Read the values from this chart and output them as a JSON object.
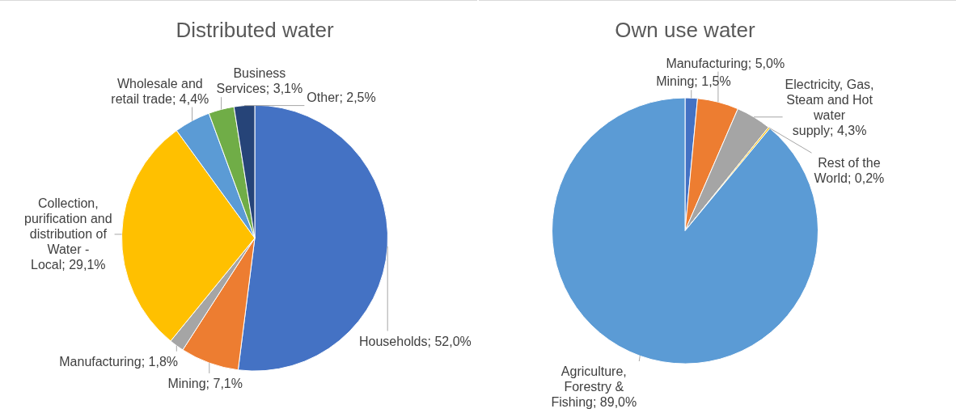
{
  "chart_data": [
    {
      "type": "pie",
      "title": "Distributed water",
      "categories": [
        "Households",
        "Mining",
        "Manufacturing",
        "Collection, purification and distribution of Water - Local",
        "Wholesale and retail trade",
        "Business Services",
        "Other"
      ],
      "values": [
        52.0,
        7.1,
        1.8,
        29.1,
        4.4,
        3.1,
        2.5
      ],
      "colors": [
        "#4472c4",
        "#ed7d31",
        "#a5a5a5",
        "#ffc000",
        "#5b9bd5",
        "#70ad47",
        "#264478"
      ],
      "value_labels": [
        "52,0%",
        "7,1%",
        "1,8%",
        "29,1%",
        "4,4%",
        "3,1%",
        "2,5%"
      ],
      "legend": false
    },
    {
      "type": "pie",
      "title": "Own use water",
      "categories": [
        "Mining",
        "Manufacturing",
        "Electricity, Gas, Steam and Hot water supply",
        "Rest of the World",
        "Agriculture, Forestry & Fishing"
      ],
      "values": [
        1.5,
        5.0,
        4.3,
        0.2,
        89.0
      ],
      "colors": [
        "#4472c4",
        "#ed7d31",
        "#a5a5a5",
        "#ffc000",
        "#5b9bd5"
      ],
      "value_labels": [
        "1,5%",
        "5,0%",
        "4,3%",
        "0,2%",
        "89,0%"
      ],
      "legend": false
    }
  ]
}
